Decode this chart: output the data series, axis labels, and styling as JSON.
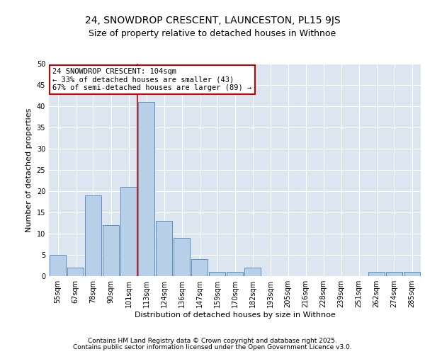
{
  "title1": "24, SNOWDROP CRESCENT, LAUNCESTON, PL15 9JS",
  "title2": "Size of property relative to detached houses in Withnoe",
  "xlabel": "Distribution of detached houses by size in Withnoe",
  "ylabel": "Number of detached properties",
  "categories": [
    "55sqm",
    "67sqm",
    "78sqm",
    "90sqm",
    "101sqm",
    "113sqm",
    "124sqm",
    "136sqm",
    "147sqm",
    "159sqm",
    "170sqm",
    "182sqm",
    "193sqm",
    "205sqm",
    "216sqm",
    "228sqm",
    "239sqm",
    "251sqm",
    "262sqm",
    "274sqm",
    "285sqm"
  ],
  "values": [
    5,
    2,
    19,
    12,
    21,
    41,
    13,
    9,
    4,
    1,
    1,
    2,
    0,
    0,
    0,
    0,
    0,
    0,
    1,
    1,
    1
  ],
  "bar_color": "#b8cfe8",
  "bar_edge_color": "#5b8ec4",
  "background_color": "#dce6f0",
  "grid_color": "#ffffff",
  "red_line_x": 4.5,
  "annotation_text": "24 SNOWDROP CRESCENT: 104sqm\n← 33% of detached houses are smaller (43)\n67% of semi-detached houses are larger (89) →",
  "annotation_box_facecolor": "#ffffff",
  "annotation_box_edgecolor": "#cc0000",
  "ylim": [
    0,
    50
  ],
  "yticks": [
    0,
    5,
    10,
    15,
    20,
    25,
    30,
    35,
    40,
    45,
    50
  ],
  "footer1": "Contains HM Land Registry data © Crown copyright and database right 2025.",
  "footer2": "Contains public sector information licensed under the Open Government Licence v3.0.",
  "title1_fontsize": 10,
  "title2_fontsize": 9,
  "xlabel_fontsize": 8,
  "ylabel_fontsize": 8,
  "tick_fontsize": 7,
  "annotation_fontsize": 7.5,
  "footer_fontsize": 6.5
}
